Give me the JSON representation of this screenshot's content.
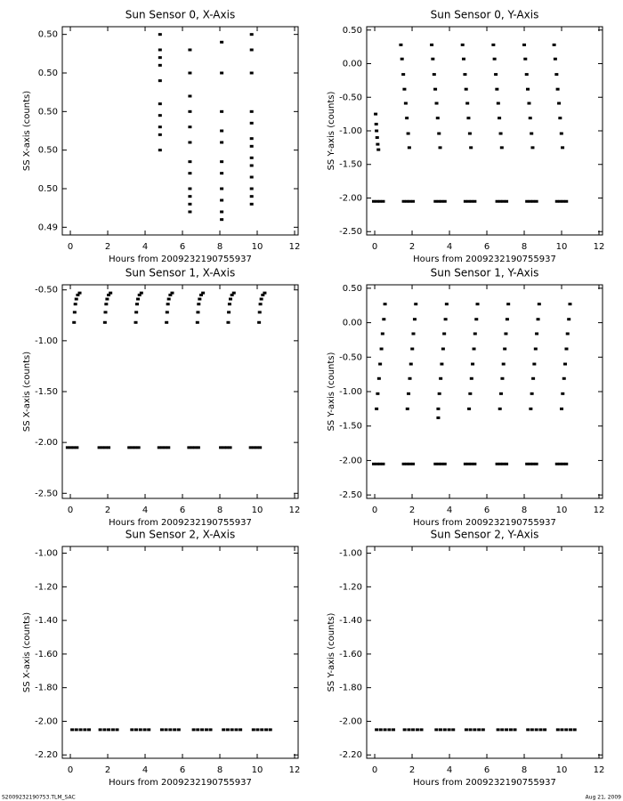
{
  "chart_data": [
    {
      "type": "scatter",
      "title": "Sun Sensor 0, X-Axis",
      "x_label": "Hours from 2009232190755937",
      "y_label": "SS X-axis (counts)",
      "xlim": [
        -0.43,
        12.19
      ],
      "xticks": [
        0,
        2,
        4,
        6,
        8,
        10,
        12
      ],
      "ylim": [
        0.49488,
        0.49542
      ],
      "yticks": [
        {
          "value": 0.4954,
          "label": "0.50"
        },
        {
          "value": 0.4953,
          "label": "0.50"
        },
        {
          "value": 0.4952,
          "label": "0.50"
        },
        {
          "value": 0.4951,
          "label": "0.50"
        },
        {
          "value": 0.495,
          "label": "0.50"
        },
        {
          "value": 0.4949,
          "label": "0.49"
        }
      ],
      "series": [
        {
          "color": "#000000",
          "x": [
            4.8,
            4.8,
            4.8,
            4.8,
            4.8,
            4.8,
            4.8,
            4.8,
            4.8,
            4.8,
            6.4,
            6.4,
            6.4,
            6.4,
            6.4,
            6.4,
            6.4,
            6.4,
            6.4,
            6.4,
            6.4,
            6.4,
            8.1,
            8.1,
            8.1,
            8.1,
            8.1,
            8.1,
            8.1,
            8.1,
            8.1,
            8.1,
            8.1,
            9.7,
            9.7,
            9.7,
            9.7,
            9.7,
            9.7,
            9.7,
            9.7,
            9.7,
            9.7,
            9.7,
            9.7,
            9.7
          ],
          "values": [
            0.4954,
            0.49536,
            0.49534,
            0.49532,
            0.49528,
            0.49522,
            0.49519,
            0.49516,
            0.49514,
            0.4951,
            0.49536,
            0.4953,
            0.49524,
            0.4952,
            0.49516,
            0.49512,
            0.49507,
            0.49504,
            0.495,
            0.49498,
            0.49496,
            0.49494,
            0.49538,
            0.4953,
            0.4952,
            0.49515,
            0.49512,
            0.49507,
            0.49504,
            0.495,
            0.49497,
            0.49494,
            0.49492,
            0.4954,
            0.49536,
            0.4953,
            0.4952,
            0.49517,
            0.49513,
            0.49511,
            0.49508,
            0.49506,
            0.49503,
            0.495,
            0.49498,
            0.49496
          ]
        }
      ]
    },
    {
      "type": "scatter",
      "title": "Sun Sensor 0, Y-Axis",
      "x_label": "Hours from 2009232190755937",
      "y_label": "SS Y-axis (counts)",
      "xlim": [
        -0.43,
        12.19
      ],
      "xticks": [
        0,
        2,
        4,
        6,
        8,
        10,
        12
      ],
      "ylim": [
        -2.55,
        0.55
      ],
      "yticks": [
        {
          "value": 0.5,
          "label": "0.50"
        },
        {
          "value": 0,
          "label": "0.00"
        },
        {
          "value": -0.5,
          "label": "-0.50"
        },
        {
          "value": -1,
          "label": "-1.00"
        },
        {
          "value": -1.5,
          "label": "-1.50"
        },
        {
          "value": -2,
          "label": "-2.00"
        },
        {
          "value": -2.5,
          "label": "-2.50"
        }
      ],
      "series": [
        {
          "color": "#000000",
          "x": [
            0.05,
            0.08,
            0.1,
            0.13,
            0.16,
            0.2,
            1.4,
            1.46,
            1.53,
            1.59,
            1.66,
            1.72,
            1.79,
            1.85,
            3.05,
            3.11,
            3.18,
            3.24,
            3.31,
            3.37,
            3.44,
            3.5,
            4.7,
            4.76,
            4.83,
            4.89,
            4.96,
            5.02,
            5.09,
            5.15,
            6.35,
            6.41,
            6.48,
            6.54,
            6.61,
            6.67,
            6.74,
            6.8,
            8,
            8.06,
            8.13,
            8.19,
            8.26,
            8.32,
            8.39,
            8.45,
            9.6,
            9.66,
            9.73,
            9.79,
            9.86,
            9.92,
            9.99,
            10.05
          ],
          "values": [
            -0.75,
            -0.9,
            -1,
            -1.1,
            -1.2,
            -1.28,
            0.28,
            0.07,
            -0.16,
            -0.38,
            -0.59,
            -0.81,
            -1.04,
            -1.25,
            0.28,
            0.07,
            -0.16,
            -0.38,
            -0.59,
            -0.81,
            -1.04,
            -1.25,
            0.28,
            0.07,
            -0.16,
            -0.38,
            -0.59,
            -0.81,
            -1.04,
            -1.25,
            0.28,
            0.07,
            -0.16,
            -0.38,
            -0.59,
            -0.81,
            -1.04,
            -1.25,
            0.28,
            0.07,
            -0.16,
            -0.38,
            -0.59,
            -0.81,
            -1.04,
            -1.25,
            0.28,
            0.07,
            -0.16,
            -0.38,
            -0.59,
            -0.81,
            -1.04,
            -1.25
          ]
        },
        {
          "color": "#000000",
          "x": [
            -0.05,
            0.12,
            0.28,
            0.45,
            1.55,
            1.72,
            1.88,
            2.05,
            3.25,
            3.42,
            3.58,
            3.75,
            4.85,
            5.02,
            5.18,
            5.35,
            6.55,
            6.72,
            6.88,
            7.05,
            8.15,
            8.32,
            8.48,
            8.65,
            9.75,
            9.92,
            10.08,
            10.25
          ],
          "values": [
            -2.05,
            -2.05,
            -2.05,
            -2.05,
            -2.05,
            -2.05,
            -2.05,
            -2.05,
            -2.05,
            -2.05,
            -2.05,
            -2.05,
            -2.05,
            -2.05,
            -2.05,
            -2.05,
            -2.05,
            -2.05,
            -2.05,
            -2.05,
            -2.05,
            -2.05,
            -2.05,
            -2.05,
            -2.05,
            -2.05,
            -2.05,
            -2.05
          ]
        }
      ]
    },
    {
      "type": "scatter",
      "title": "Sun Sensor 1, X-Axis",
      "x_label": "Hours from 2009232190755937",
      "y_label": "SS X-axis (counts)",
      "xlim": [
        -0.43,
        12.19
      ],
      "xticks": [
        0,
        2,
        4,
        6,
        8,
        10,
        12
      ],
      "ylim": [
        -2.55,
        -0.45
      ],
      "yticks": [
        {
          "value": -0.5,
          "label": "-0.50"
        },
        {
          "value": -1,
          "label": "-1.00"
        },
        {
          "value": -1.5,
          "label": "-1.50"
        },
        {
          "value": -2,
          "label": "-2.00"
        },
        {
          "value": -2.5,
          "label": "-2.50"
        }
      ],
      "series": [
        {
          "color": "#000000",
          "x": [
            0.2,
            0.23,
            0.27,
            0.32,
            0.4,
            0.5,
            1.85,
            1.88,
            1.92,
            1.97,
            2.05,
            2.15,
            3.5,
            3.53,
            3.57,
            3.62,
            3.7,
            3.8,
            5.15,
            5.18,
            5.22,
            5.27,
            5.35,
            5.45,
            6.8,
            6.83,
            6.87,
            6.92,
            7,
            7.1,
            8.45,
            8.48,
            8.52,
            8.57,
            8.65,
            8.75,
            10.1,
            10.13,
            10.17,
            10.22,
            10.3,
            10.4
          ],
          "values": [
            -0.82,
            -0.72,
            -0.64,
            -0.59,
            -0.55,
            -0.53,
            -0.82,
            -0.72,
            -0.64,
            -0.59,
            -0.55,
            -0.53,
            -0.82,
            -0.72,
            -0.64,
            -0.59,
            -0.55,
            -0.53,
            -0.82,
            -0.72,
            -0.64,
            -0.59,
            -0.55,
            -0.53,
            -0.82,
            -0.72,
            -0.64,
            -0.59,
            -0.55,
            -0.53,
            -0.82,
            -0.72,
            -0.64,
            -0.59,
            -0.55,
            -0.53,
            -0.82,
            -0.72,
            -0.64,
            -0.59,
            -0.55,
            -0.53
          ]
        },
        {
          "color": "#000000",
          "x": [
            -0.15,
            0.02,
            0.18,
            0.35,
            1.55,
            1.72,
            1.88,
            2.05,
            3.15,
            3.32,
            3.48,
            3.65,
            4.75,
            4.92,
            5.08,
            5.25,
            6.35,
            6.52,
            6.68,
            6.85,
            8.05,
            8.22,
            8.38,
            8.55,
            9.65,
            9.82,
            9.98,
            10.15
          ],
          "values": [
            -2.05,
            -2.05,
            -2.05,
            -2.05,
            -2.05,
            -2.05,
            -2.05,
            -2.05,
            -2.05,
            -2.05,
            -2.05,
            -2.05,
            -2.05,
            -2.05,
            -2.05,
            -2.05,
            -2.05,
            -2.05,
            -2.05,
            -2.05,
            -2.05,
            -2.05,
            -2.05,
            -2.05,
            -2.05,
            -2.05,
            -2.05,
            -2.05
          ]
        }
      ]
    },
    {
      "type": "scatter",
      "title": "Sun Sensor 1, Y-Axis",
      "x_label": "Hours from 2009232190755937",
      "y_label": "SS Y-axis (counts)",
      "xlim": [
        -0.43,
        12.19
      ],
      "xticks": [
        0,
        2,
        4,
        6,
        8,
        10,
        12
      ],
      "ylim": [
        -2.55,
        0.55
      ],
      "yticks": [
        {
          "value": 0.5,
          "label": "0.50"
        },
        {
          "value": 0,
          "label": "0.00"
        },
        {
          "value": -0.5,
          "label": "-0.50"
        },
        {
          "value": -1,
          "label": "-1.00"
        },
        {
          "value": -1.5,
          "label": "-1.50"
        },
        {
          "value": -2,
          "label": "-2.00"
        },
        {
          "value": -2.5,
          "label": "-2.50"
        }
      ],
      "series": [
        {
          "color": "#000000",
          "x": [
            0.1,
            0.16,
            0.23,
            0.29,
            0.36,
            0.42,
            0.49,
            0.55,
            1.75,
            1.81,
            1.88,
            1.94,
            2.01,
            2.07,
            2.14,
            2.2,
            3.4,
            3.46,
            3.53,
            3.59,
            3.66,
            3.72,
            3.79,
            3.85,
            3.4,
            5.05,
            5.11,
            5.18,
            5.24,
            5.31,
            5.37,
            5.44,
            5.5,
            6.7,
            6.76,
            6.83,
            6.89,
            6.96,
            7.02,
            7.09,
            7.15,
            8.35,
            8.41,
            8.48,
            8.54,
            8.61,
            8.67,
            8.74,
            8.8,
            10,
            10.06,
            10.13,
            10.19,
            10.26,
            10.32,
            10.39,
            10.45
          ],
          "values": [
            -1.25,
            -1.03,
            -0.81,
            -0.6,
            -0.38,
            -0.16,
            0.05,
            0.27,
            -1.25,
            -1.03,
            -0.81,
            -0.6,
            -0.38,
            -0.16,
            0.05,
            0.27,
            -1.25,
            -1.03,
            -0.81,
            -0.6,
            -0.38,
            -0.16,
            0.05,
            0.27,
            -1.38,
            -1.25,
            -1.03,
            -0.81,
            -0.6,
            -0.38,
            -0.16,
            0.05,
            0.27,
            -1.25,
            -1.03,
            -0.81,
            -0.6,
            -0.38,
            -0.16,
            0.05,
            0.27,
            -1.25,
            -1.03,
            -0.81,
            -0.6,
            -0.38,
            -0.16,
            0.05,
            0.27,
            -1.25,
            -1.03,
            -0.81,
            -0.6,
            -0.38,
            -0.16,
            0.05,
            0.27
          ]
        },
        {
          "color": "#000000",
          "x": [
            -0.05,
            0.12,
            0.28,
            0.45,
            1.55,
            1.72,
            1.88,
            2.05,
            3.25,
            3.42,
            3.58,
            3.75,
            4.85,
            5.02,
            5.18,
            5.35,
            6.55,
            6.72,
            6.88,
            7.05,
            8.15,
            8.32,
            8.48,
            8.65,
            9.75,
            9.92,
            10.08,
            10.25
          ],
          "values": [
            -2.05,
            -2.05,
            -2.05,
            -2.05,
            -2.05,
            -2.05,
            -2.05,
            -2.05,
            -2.05,
            -2.05,
            -2.05,
            -2.05,
            -2.05,
            -2.05,
            -2.05,
            -2.05,
            -2.05,
            -2.05,
            -2.05,
            -2.05,
            -2.05,
            -2.05,
            -2.05,
            -2.05,
            -2.05,
            -2.05,
            -2.05,
            -2.05
          ]
        }
      ]
    },
    {
      "type": "scatter",
      "title": "Sun Sensor 2, X-Axis",
      "x_label": "Hours from 2009232190755937",
      "y_label": "SS X-axis (counts)",
      "xlim": [
        -0.43,
        12.19
      ],
      "xticks": [
        0,
        2,
        4,
        6,
        8,
        10,
        12
      ],
      "ylim": [
        -2.22,
        -0.96
      ],
      "yticks": [
        {
          "value": -1,
          "label": "-1.00"
        },
        {
          "value": -1.2,
          "label": "-1.20"
        },
        {
          "value": -1.4,
          "label": "-1.40"
        },
        {
          "value": -1.6,
          "label": "-1.60"
        },
        {
          "value": -1.8,
          "label": "-1.80"
        },
        {
          "value": -2,
          "label": "-2.00"
        },
        {
          "value": -2.2,
          "label": "-2.20"
        }
      ],
      "series": [
        {
          "color": "#000000",
          "x": [
            0.1,
            0.32,
            0.55,
            0.78,
            1,
            1.6,
            1.83,
            2.05,
            2.28,
            2.5,
            3.3,
            3.52,
            3.75,
            3.98,
            4.2,
            4.9,
            5.12,
            5.35,
            5.58,
            5.8,
            6.6,
            6.82,
            7.05,
            7.28,
            7.5,
            8.2,
            8.42,
            8.65,
            8.88,
            9.1,
            9.8,
            10.02,
            10.25,
            10.48,
            10.7
          ],
          "values": [
            -2.05,
            -2.05,
            -2.05,
            -2.05,
            -2.05,
            -2.05,
            -2.05,
            -2.05,
            -2.05,
            -2.05,
            -2.05,
            -2.05,
            -2.05,
            -2.05,
            -2.05,
            -2.05,
            -2.05,
            -2.05,
            -2.05,
            -2.05,
            -2.05,
            -2.05,
            -2.05,
            -2.05,
            -2.05,
            -2.05,
            -2.05,
            -2.05,
            -2.05,
            -2.05,
            -2.05,
            -2.05,
            -2.05,
            -2.05,
            -2.05
          ]
        }
      ]
    },
    {
      "type": "scatter",
      "title": "Sun Sensor 2, Y-Axis",
      "x_label": "Hours from 2009232190755937",
      "y_label": "SS Y-axis (counts)",
      "xlim": [
        -0.43,
        12.19
      ],
      "xticks": [
        0,
        2,
        4,
        6,
        8,
        10,
        12
      ],
      "ylim": [
        -2.22,
        -0.96
      ],
      "yticks": [
        {
          "value": -1,
          "label": "-1.00"
        },
        {
          "value": -1.2,
          "label": "-1.20"
        },
        {
          "value": -1.4,
          "label": "-1.40"
        },
        {
          "value": -1.6,
          "label": "-1.60"
        },
        {
          "value": -1.8,
          "label": "-1.80"
        },
        {
          "value": -2,
          "label": "-2.00"
        },
        {
          "value": -2.2,
          "label": "-2.20"
        }
      ],
      "series": [
        {
          "color": "#000000",
          "x": [
            0.1,
            0.32,
            0.55,
            0.78,
            1,
            1.6,
            1.83,
            2.05,
            2.28,
            2.5,
            3.3,
            3.52,
            3.75,
            3.98,
            4.2,
            4.9,
            5.12,
            5.35,
            5.58,
            5.8,
            6.6,
            6.82,
            7.05,
            7.28,
            7.5,
            8.2,
            8.42,
            8.65,
            8.88,
            9.1,
            9.8,
            10.02,
            10.25,
            10.48,
            10.7
          ],
          "values": [
            -2.05,
            -2.05,
            -2.05,
            -2.05,
            -2.05,
            -2.05,
            -2.05,
            -2.05,
            -2.05,
            -2.05,
            -2.05,
            -2.05,
            -2.05,
            -2.05,
            -2.05,
            -2.05,
            -2.05,
            -2.05,
            -2.05,
            -2.05,
            -2.05,
            -2.05,
            -2.05,
            -2.05,
            -2.05,
            -2.05,
            -2.05,
            -2.05,
            -2.05,
            -2.05,
            -2.05,
            -2.05,
            -2.05,
            -2.05,
            -2.05
          ]
        }
      ]
    }
  ],
  "footer": {
    "left": "S2009232190753.TLM_SAC",
    "right": "Aug 21, 2009"
  }
}
